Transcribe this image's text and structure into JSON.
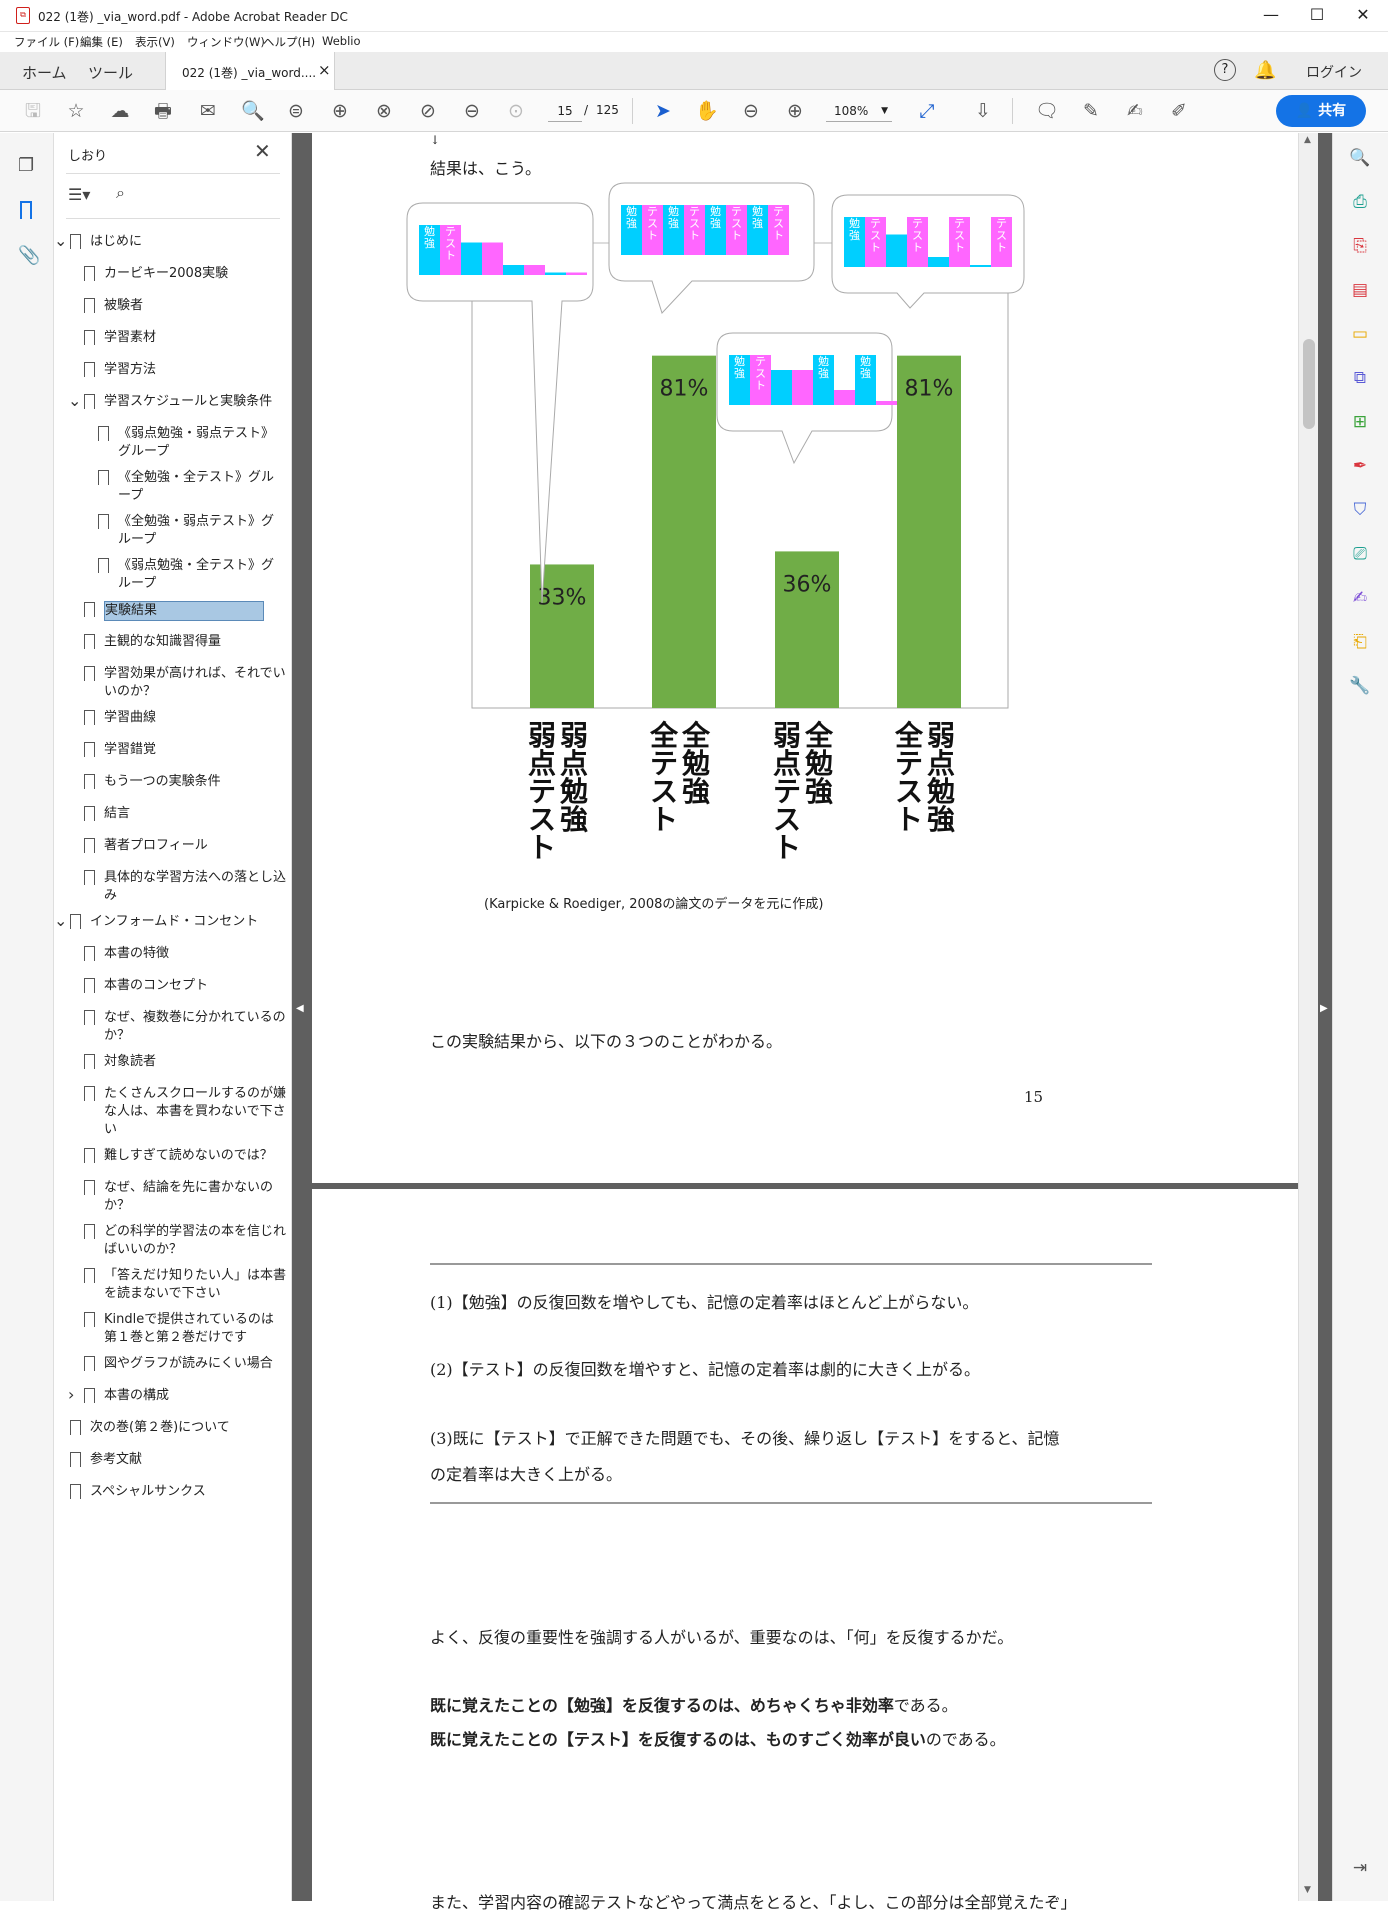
{
  "window": {
    "title": "022 (1巻) _via_word.pdf - Adobe Acrobat Reader DC",
    "minimize": "—",
    "maximize": "☐",
    "close": "✕"
  },
  "menu": [
    "ファイル (F)",
    "編集 (E)",
    "表示(V)",
    "ウィンドウ(W)",
    "ヘルプ(H)",
    "Weblio"
  ],
  "tabs": {
    "home": "ホーム",
    "tools": "ツール",
    "doc": "022 (1巻) _via_word....",
    "close": "×",
    "help": "?",
    "login": "ログイン"
  },
  "toolbar": {
    "page_current": "15",
    "page_sep": "/",
    "page_total": "125",
    "zoom": "108%",
    "share": "共有"
  },
  "bookmarks": {
    "header": "しおり",
    "items": [
      {
        "label": "はじめに",
        "level": 0,
        "chev": "down"
      },
      {
        "label": "カービキー2008実験",
        "level": 1
      },
      {
        "label": "被験者",
        "level": 1
      },
      {
        "label": "学習素材",
        "level": 1
      },
      {
        "label": "学習方法",
        "level": 1
      },
      {
        "label": "学習スケジュールと実験条件",
        "level": 1,
        "chev": "down"
      },
      {
        "label": "《弱点勉強・弱点テスト》グループ",
        "level": 2
      },
      {
        "label": "《全勉強・全テスト》グループ",
        "level": 2
      },
      {
        "label": "《全勉強・弱点テスト》グループ",
        "level": 2
      },
      {
        "label": "《弱点勉強・全テスト》グループ",
        "level": 2
      },
      {
        "label": "実験結果",
        "level": 1,
        "selected": true
      },
      {
        "label": "主観的な知識習得量",
        "level": 1
      },
      {
        "label": "学習効果が高ければ、それでいいのか？",
        "level": 1
      },
      {
        "label": "学習曲線",
        "level": 1
      },
      {
        "label": "学習錯覚",
        "level": 1
      },
      {
        "label": "もう一つの実験条件",
        "level": 1
      },
      {
        "label": "結言",
        "level": 1
      },
      {
        "label": "著者プロフィール",
        "level": 1
      },
      {
        "label": "具体的な学習方法への落とし込み",
        "level": 1
      },
      {
        "label": "インフォームド・コンセント",
        "level": 0,
        "chev": "down"
      },
      {
        "label": "本書の特徴",
        "level": 1
      },
      {
        "label": "本書のコンセプト",
        "level": 1
      },
      {
        "label": "なぜ、複数巻に分かれているのか？",
        "level": 1
      },
      {
        "label": "対象読者",
        "level": 1
      },
      {
        "label": "たくさんスクロールするのが嫌な人は、本書を買わないで下さい",
        "level": 1
      },
      {
        "label": "難しすぎて読めないのでは？",
        "level": 1
      },
      {
        "label": "なぜ、結論を先に書かないのか？",
        "level": 1
      },
      {
        "label": "どの科学的学習法の本を信じればいいのか？",
        "level": 1
      },
      {
        "label": "「答えだけ知りたい人」は本書を読まないで下さい",
        "level": 1
      },
      {
        "label": "Kindleで提供されているのは第１巻と第２巻だけです",
        "level": 1
      },
      {
        "label": "図やグラフが読みにくい場合",
        "level": 1
      },
      {
        "label": "本書の構成",
        "level": 1,
        "chev": "right"
      },
      {
        "label": "次の巻(第２巻)について",
        "level": 0
      },
      {
        "label": "参考文献",
        "level": 0
      },
      {
        "label": "スペシャルサンクス",
        "level": 0
      }
    ]
  },
  "page1": {
    "intro": "結果は、こう。",
    "caption": "(Karpicke & Roediger, 2008の論文のデータを元に作成)",
    "after": "この実験結果から、以下の３つのことがわかる。",
    "page_number": "15"
  },
  "chart_data": {
    "type": "bar",
    "categories": [
      "弱点勉強 弱点テスト",
      "全勉強 全テスト",
      "全勉強 弱点テスト",
      "弱点勉強 全テスト"
    ],
    "category_lines": [
      [
        "弱点勉強",
        "弱点テスト"
      ],
      [
        "全勉強",
        "全テスト"
      ],
      [
        "全勉強",
        "弱点テスト"
      ],
      [
        "弱点勉強",
        "全テスト"
      ]
    ],
    "values": [
      33,
      81,
      36,
      81
    ],
    "value_labels": [
      "33%",
      "81%",
      "36%",
      "81%"
    ],
    "ylim": [
      0,
      100
    ],
    "bar_color": "#70ad47",
    "study_color": "#00cfff",
    "test_color": "#ff66ff",
    "study_label": "勉強",
    "test_label": "テスト",
    "bubbles": [
      {
        "blocks": [
          {
            "t": "s",
            "h": 1.0,
            "l": true
          },
          {
            "t": "t",
            "h": 1.0,
            "l": true
          },
          {
            "t": "s",
            "h": 0.65
          },
          {
            "t": "t",
            "h": 0.65
          },
          {
            "t": "s",
            "h": 0.2
          },
          {
            "t": "t",
            "h": 0.2
          },
          {
            "t": "s",
            "h": 0.05
          },
          {
            "t": "t",
            "h": 0.05
          }
        ]
      },
      {
        "blocks": [
          {
            "t": "s",
            "h": 1,
            "l": true
          },
          {
            "t": "t",
            "h": 1,
            "l": true
          },
          {
            "t": "s",
            "h": 1,
            "l": true
          },
          {
            "t": "t",
            "h": 1,
            "l": true
          },
          {
            "t": "s",
            "h": 1,
            "l": true
          },
          {
            "t": "t",
            "h": 1,
            "l": true
          },
          {
            "t": "s",
            "h": 1,
            "l": true
          },
          {
            "t": "t",
            "h": 1,
            "l": true
          }
        ]
      },
      {
        "blocks": [
          {
            "t": "s",
            "h": 1,
            "l": true
          },
          {
            "t": "t",
            "h": 1,
            "l": true
          },
          {
            "t": "s",
            "h": 0.7
          },
          {
            "t": "t",
            "h": 0.7
          },
          {
            "t": "s",
            "h": 1,
            "l": true
          },
          {
            "t": "t",
            "h": 0.3
          },
          {
            "t": "s",
            "h": 1,
            "l": true
          },
          {
            "t": "t",
            "h": 0.08
          }
        ]
      },
      {
        "blocks": [
          {
            "t": "s",
            "h": 1,
            "l": true
          },
          {
            "t": "t",
            "h": 1,
            "l": true
          },
          {
            "t": "s",
            "h": 0.65
          },
          {
            "t": "t",
            "h": 1,
            "l": true
          },
          {
            "t": "s",
            "h": 0.2
          },
          {
            "t": "t",
            "h": 1,
            "l": true
          },
          {
            "t": "s",
            "h": 0.04
          },
          {
            "t": "t",
            "h": 1,
            "l": true
          }
        ]
      }
    ]
  },
  "page2": {
    "p1": "(1)【勉強】の反復回数を増やしても、記憶の定着率はほとんど上がらない。",
    "p2": "(2)【テスト】の反復回数を増やすと、記憶の定着率は劇的に大きく上がる。",
    "p3a": "(3)既に【テスト】で正解できた問題でも、その後、繰り返し【テスト】をすると、記憶",
    "p3b": "の定着率は大きく上がる。",
    "p4": "よく、反復の重要性を強調する人がいるが、重要なのは、「何」を反復するかだ。",
    "p5a": "既に覚えたことの【勉強】を反復するのは、めちゃくちゃ非効率",
    "p5b": "である。",
    "p6a": "既に覚えたことの【テスト】を反復するのは、ものすごく効率が良い",
    "p6b": "のである。",
    "p7": "また、学習内容の確認テストなどやって満点をとると、「よし、この部分は全部覚えたぞ」"
  }
}
